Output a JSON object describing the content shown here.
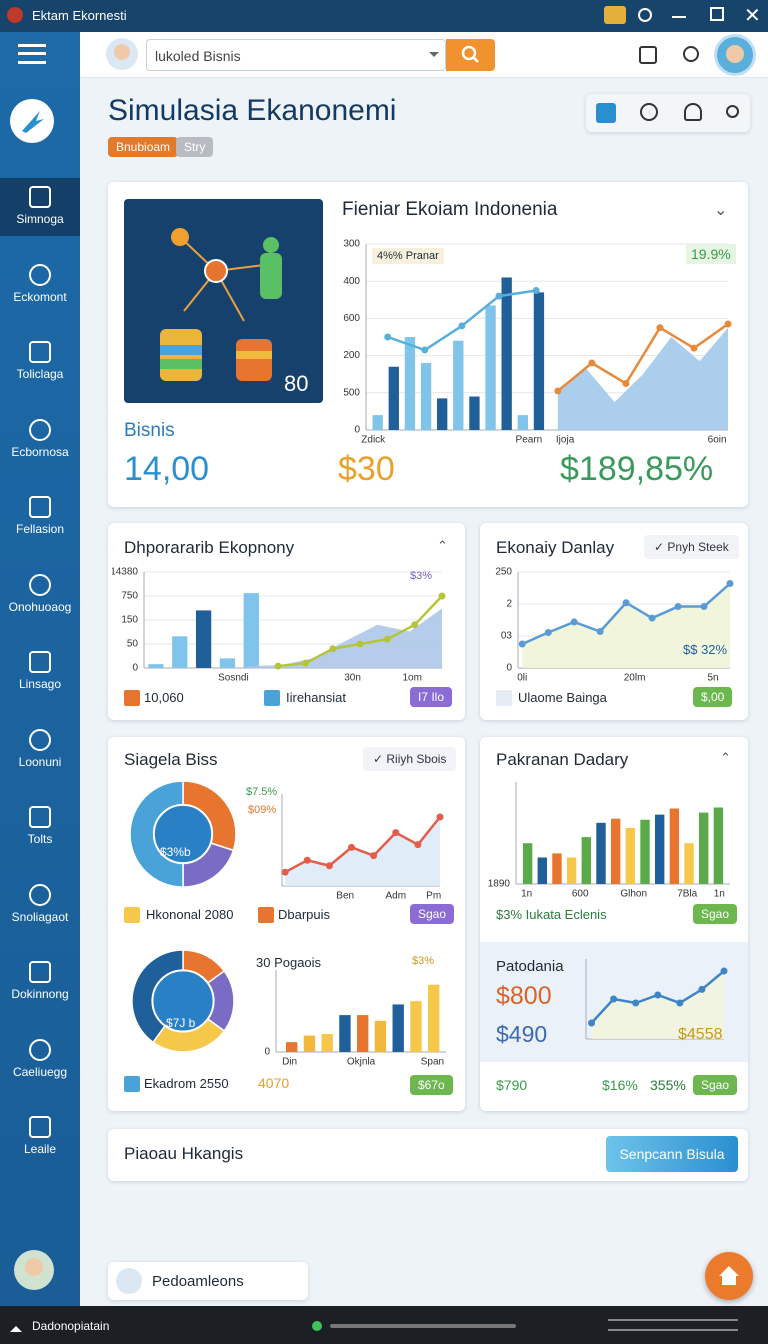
{
  "window": {
    "title": "Ektam Ekornesti"
  },
  "search": {
    "placeholder": "lukoled Bisnis"
  },
  "sidebar": {
    "items": [
      "Simnoga",
      "Eckomont",
      "Toliclaga",
      "Ecbornosa",
      "Fellasion",
      "Onohuoaog",
      "Linsago",
      "Loonuni",
      "Tolts",
      "Snoliagaot",
      "Dokinnong",
      "Caeliuegg",
      "Leaile"
    ]
  },
  "header": {
    "title": "Simulasia Ekanonemi",
    "tags": [
      "Bnubioam",
      "Stry"
    ]
  },
  "overview": {
    "image_badge": "80",
    "label": "Bisnis",
    "stats": [
      "14,00",
      "$30",
      "$189,85%"
    ],
    "chart_title": "Fieniar Ekoiam Indonenia",
    "legend": "4%% Pranar",
    "corner": "19.9%"
  },
  "cards": [
    {
      "title": "Dhporararib Ekopnony",
      "legend": "$3%",
      "footer": [
        "10,060",
        "Iirehansiat"
      ],
      "badge": "I7 Ilo"
    },
    {
      "title": "Ekonaiy Danlay",
      "button": "✓ Pnyh Steek",
      "note": "$$ 32%",
      "footer": [
        "Ulaome Bainga"
      ],
      "badge": "$,00"
    },
    {
      "title": "Siagela Biss",
      "button": "✓ Riiyh Sbois",
      "pie_labels": [
        "$7.5%",
        "$09%"
      ],
      "pie_center": "$3%b",
      "footer": [
        "Hkononal 2080",
        "Dbarpuis"
      ],
      "badge": "Sgao",
      "sub_title": "30 Pogaois",
      "sub_legend": "$3%",
      "pie2_center": "$7J b",
      "footer2": [
        "Ekadrom 2550",
        "4070"
      ],
      "badge2": "$67o"
    },
    {
      "title": "Pakranan Dadary",
      "footer": [
        "$3% Iukata Eclenis"
      ],
      "badge": "Sgao",
      "sub_title": "Patodania",
      "figures": [
        "$800",
        "$490",
        "$4558"
      ],
      "footer2": [
        "$790",
        "$16%",
        "355%"
      ],
      "badge2": "Sgao"
    }
  ],
  "charts": [
    {
      "y_labels": [
        "300",
        "400",
        "600",
        "200",
        "500",
        "0"
      ],
      "x_labels": [
        "Zdick",
        "Pearn",
        "Ijoja",
        "6oin"
      ],
      "ylim": [
        0,
        100
      ],
      "series": [
        {
          "type": "bar",
          "values": [
            8,
            34,
            50,
            36,
            17,
            48,
            18,
            67,
            82,
            8,
            74
          ],
          "colors": [
            "#7fc4ea",
            "#1f5f9a",
            "#7fc4ea",
            "#7fc4ea",
            "#1f5f9a",
            "#7fc4ea",
            "#1f5f9a",
            "#7fc4ea",
            "#1f5f9a",
            "#7fc4ea",
            "#1f5f9a"
          ]
        },
        {
          "type": "line",
          "color": "#5aaedc",
          "values": [
            50,
            43,
            56,
            72,
            75
          ]
        },
        {
          "type": "area",
          "color": "#9cc6ea",
          "values": [
            20,
            33,
            15,
            30,
            50,
            37,
            55
          ]
        },
        {
          "type": "line",
          "color": "#e8893a",
          "values": [
            21,
            36,
            25,
            55,
            44,
            57
          ]
        }
      ]
    },
    {
      "y_labels": [
        "14380",
        "750",
        "150",
        "50",
        "0"
      ],
      "x_labels": [
        "Sosndi",
        "30n",
        "1om"
      ],
      "ylim": [
        0,
        100
      ],
      "series": [
        {
          "type": "bar",
          "values": [
            4,
            33,
            60,
            10,
            78
          ],
          "colors": [
            "#7fc4ea",
            "#7fc4ea",
            "#1f5f9a",
            "#7fc4ea",
            "#7fc4ea"
          ]
        },
        {
          "type": "area",
          "color": "#a8c4e6",
          "values": [
            2,
            3,
            10,
            28,
            45,
            38,
            62
          ]
        },
        {
          "type": "line",
          "color": "#b5c53a",
          "values": [
            2,
            5,
            20,
            25,
            30,
            45,
            75
          ]
        }
      ]
    },
    {
      "y_labels": [
        "250",
        "2",
        "03",
        "0"
      ],
      "x_labels": [
        "0li",
        "20lm",
        "5n"
      ],
      "ylim": [
        0,
        100
      ],
      "series": [
        {
          "type": "area",
          "color": "#eef3d6",
          "values": [
            25,
            37,
            48,
            38,
            68,
            52,
            64,
            64,
            88
          ]
        },
        {
          "type": "line",
          "color": "#5b9bd5",
          "values": [
            25,
            37,
            48,
            38,
            68,
            52,
            64,
            64,
            88
          ]
        }
      ]
    },
    {
      "y_labels": [],
      "x_labels": [
        "Ben",
        "Adm",
        "Pm"
      ],
      "ylim": [
        0,
        100
      ],
      "series": [
        {
          "type": "area",
          "color": "#dbe9f7",
          "values": [
            15,
            28,
            22,
            42,
            33,
            58,
            45,
            75
          ]
        },
        {
          "type": "line",
          "color": "#e35d4a",
          "values": [
            15,
            28,
            22,
            42,
            33,
            58,
            45,
            75
          ]
        }
      ]
    },
    {
      "y_labels": [
        "0"
      ],
      "x_labels": [
        "Din",
        "Okjnla",
        "Span"
      ],
      "ylim": [
        0,
        100
      ],
      "series": [
        {
          "type": "bar",
          "values": [
            12,
            20,
            22,
            45,
            45,
            38,
            58,
            62,
            82
          ],
          "colors": [
            "#e8752f",
            "#f0b83c",
            "#f5c84a",
            "#1f5f9a",
            "#e8752f",
            "#f0b83c",
            "#1f5f9a",
            "#f5c84a",
            "#f5c84a"
          ]
        }
      ]
    },
    {
      "y_labels": [
        "1890"
      ],
      "x_labels": [
        "1n",
        "600",
        "Glhon",
        "7Bla",
        "1n"
      ],
      "ylim": [
        0,
        100
      ],
      "series": [
        {
          "type": "bar",
          "values": [
            40,
            26,
            30,
            26,
            46,
            60,
            64,
            55,
            63,
            68,
            74,
            40,
            70,
            75
          ],
          "colors": [
            "#5aaa4a",
            "#1f5f9a",
            "#e8752f",
            "#f5c84a",
            "#5aaa4a",
            "#1f5f9a",
            "#e8752f",
            "#f5c84a",
            "#5aaa4a",
            "#1f5f9a",
            "#e8752f",
            "#f5c84a",
            "#5aaa4a",
            "#5aaa4a"
          ]
        }
      ]
    },
    {
      "y_labels": [],
      "x_labels": [],
      "ylim": [
        0,
        100
      ],
      "series": [
        {
          "type": "area",
          "color": "#f1f5dc",
          "values": [
            20,
            50,
            45,
            55,
            45,
            62,
            85
          ]
        },
        {
          "type": "line",
          "color": "#3e84c6",
          "values": [
            20,
            50,
            45,
            55,
            45,
            62,
            85
          ]
        }
      ]
    }
  ],
  "pies": [
    {
      "values": [
        30,
        20,
        50
      ],
      "colors": [
        "#e8752f",
        "#7a6cc4",
        "#4aa3d8"
      ]
    },
    {
      "values": [
        15,
        20,
        25,
        40
      ],
      "colors": [
        "#e8752f",
        "#7a6cc4",
        "#f5c84a",
        "#1f5f9a"
      ]
    }
  ],
  "banner": {
    "title": "Piaoau Hkangis",
    "button": "Senpcann Bisula"
  },
  "chip": {
    "label": "Pedoamleons"
  },
  "taskbar": {
    "label": "Dadonopiatain"
  }
}
